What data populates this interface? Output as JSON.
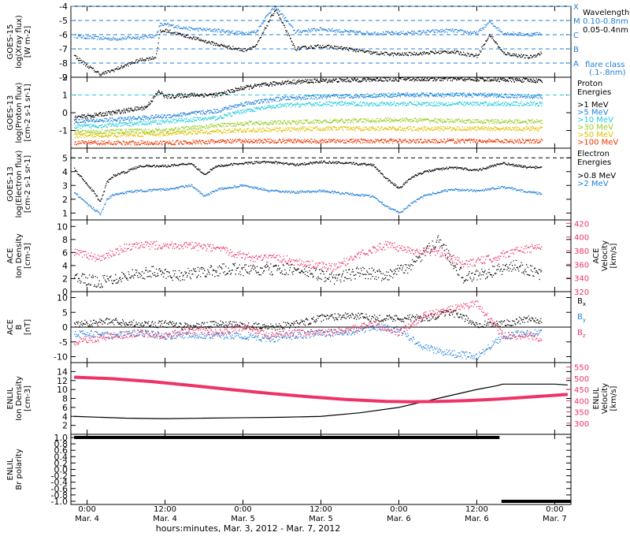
{
  "colors": {
    "black": "#000000",
    "blue": "#1e7fd8",
    "pink": "#ee3366",
    "cyan": "#22ccdd",
    "cyan2": "#33dddd",
    "lime": "#99cc22",
    "yellow": "#e0c000",
    "orange": "#ee8800",
    "red": "#ee3300",
    "dash_blue": "#1e7fd8"
  },
  "time_axis": {
    "title": "hours:minutes, Mar.  3, 2012 - Mar.  7, 2012",
    "ticks": [
      {
        "t": 0,
        "label1": "0:00",
        "label2": "Mar. 4"
      },
      {
        "t": 12,
        "label1": "12:00",
        "label2": "Mar. 4"
      },
      {
        "t": 24,
        "label1": "0:00",
        "label2": "Mar. 5"
      },
      {
        "t": 36,
        "label1": "12:00",
        "label2": "Mar. 5"
      },
      {
        "t": 48,
        "label1": "0:00",
        "label2": "Mar. 6"
      },
      {
        "t": 60,
        "label1": "12:00",
        "label2": "Mar. 6"
      },
      {
        "t": 72,
        "label1": "0:00",
        "label2": "Mar. 7"
      }
    ],
    "range": [
      -2.5,
      74.5
    ]
  },
  "chart_data": [
    {
      "id": "xray",
      "type": "line",
      "ylabel_lines": [
        "GOES-15",
        "log(Xray flux)",
        "[W m-2]"
      ],
      "ylim": [
        -9,
        -4
      ],
      "yticks": [
        -9,
        -8,
        -7,
        -6,
        -5,
        -4
      ],
      "ytick_labels": [
        "-9",
        "-8",
        "-7",
        "-6",
        "-5",
        "-4"
      ],
      "flare_lines": [
        {
          "y": -8,
          "label": "A"
        },
        {
          "y": -7,
          "label": "B"
        },
        {
          "y": -6,
          "label": "C"
        },
        {
          "y": -5,
          "label": "M"
        },
        {
          "y": -4,
          "label": "X"
        }
      ],
      "legend": [
        "Wavelength",
        "0.10-0.8nm",
        "0.05-0.4nm"
      ],
      "legend_note": [
        "flare class",
        "(.1-.8nm)"
      ],
      "series": [
        {
          "name": "0.10-0.8nm",
          "color_key": "blue",
          "x": [
            -2,
            0,
            4,
            8,
            10.5,
            11.2,
            12,
            16,
            20,
            24,
            26,
            28,
            29,
            30,
            32,
            36,
            40,
            44,
            48,
            52,
            56,
            60,
            62,
            64,
            68,
            70
          ],
          "y": [
            -6.1,
            -6.2,
            -6.3,
            -6.2,
            -6.1,
            -5.3,
            -5.3,
            -5.6,
            -5.7,
            -5.9,
            -5.8,
            -4.4,
            -4.1,
            -4.6,
            -5.8,
            -5.6,
            -5.8,
            -5.9,
            -5.9,
            -5.8,
            -5.7,
            -5.9,
            -5.1,
            -5.9,
            -6.0,
            -5.9
          ]
        },
        {
          "name": "0.05-0.4nm",
          "color_key": "black",
          "x": [
            -2,
            0,
            2,
            4,
            8,
            10.5,
            11.2,
            12,
            16,
            20,
            24,
            26,
            28,
            29,
            30,
            32,
            36,
            40,
            44,
            48,
            52,
            56,
            60,
            62,
            64,
            68,
            70
          ],
          "y": [
            -7.5,
            -8.2,
            -8.8,
            -8.5,
            -7.8,
            -7.6,
            -5.8,
            -5.7,
            -6.2,
            -6.7,
            -7.1,
            -6.8,
            -5.0,
            -4.2,
            -5.2,
            -7.0,
            -6.8,
            -7.0,
            -7.3,
            -7.4,
            -7.3,
            -7.2,
            -7.5,
            -6.0,
            -7.3,
            -7.6,
            -7.3
          ]
        }
      ]
    },
    {
      "id": "proton",
      "type": "scatter",
      "ylabel_lines": [
        "GOES-13",
        "log(Proton flux)",
        "[cm-2 s-1 sr-1]"
      ],
      "ylim": [
        -2,
        2
      ],
      "yticks": [
        -1,
        0,
        1,
        2
      ],
      "ytick_labels": [
        "-1",
        "0",
        "1",
        "2"
      ],
      "threshold": 1,
      "legend_title": [
        "Proton",
        "Energies"
      ],
      "series": [
        {
          "name": ">1 MeV",
          "color_key": "black",
          "x": [
            -2,
            4,
            9,
            11,
            12,
            16,
            20,
            24,
            30,
            36,
            48,
            60,
            70
          ],
          "y": [
            -0.3,
            0.0,
            0.3,
            1.2,
            0.9,
            1.0,
            1.0,
            1.4,
            1.7,
            1.8,
            1.9,
            1.9,
            1.8
          ]
        },
        {
          "name": ">5 MeV",
          "color_key": "blue",
          "x": [
            -2,
            4,
            12,
            20,
            24,
            30,
            36,
            48,
            60,
            70
          ],
          "y": [
            -0.5,
            -0.4,
            -0.2,
            0.1,
            0.5,
            0.8,
            0.9,
            1.0,
            1.0,
            0.9
          ]
        },
        {
          "name": ">10 MeV",
          "color_key": "cyan",
          "x": [
            -2,
            4,
            12,
            20,
            24,
            30,
            36,
            48,
            60,
            70
          ],
          "y": [
            -0.8,
            -0.7,
            -0.5,
            -0.3,
            0.1,
            0.4,
            0.5,
            0.5,
            0.5,
            0.5
          ]
        },
        {
          "name": ">30 MeV",
          "color_key": "lime",
          "x": [
            -2,
            12,
            24,
            36,
            48,
            60,
            70
          ],
          "y": [
            -1.1,
            -1.0,
            -0.6,
            -0.5,
            -0.4,
            -0.5,
            -0.5
          ]
        },
        {
          "name": ">50 MeV",
          "color_key": "yellow",
          "x": [
            -2,
            12,
            24,
            36,
            48,
            60,
            70
          ],
          "y": [
            -1.3,
            -1.2,
            -1.0,
            -0.9,
            -0.9,
            -0.9,
            -0.9
          ]
        },
        {
          "name": ">100 MeV",
          "color_key": "red",
          "x": [
            -2,
            12,
            24,
            36,
            48,
            60,
            70
          ],
          "y": [
            -1.7,
            -1.7,
            -1.6,
            -1.6,
            -1.6,
            -1.6,
            -1.6
          ]
        }
      ]
    },
    {
      "id": "electron",
      "type": "line",
      "ylabel_lines": [
        "GOES-13",
        "log(Electron flux)",
        "[cm-2 s-1 sr-1]"
      ],
      "ylim": [
        0.5,
        5.7
      ],
      "yticks": [
        1,
        2,
        3,
        4,
        5
      ],
      "ytick_labels": [
        "1",
        "2",
        "3",
        "4",
        "5"
      ],
      "threshold": 5,
      "legend_title": [
        "Electron",
        "Energies"
      ],
      "series": [
        {
          "name": ">0.8 MeV",
          "color_key": "black",
          "x": [
            -2,
            0,
            1,
            2,
            3,
            4,
            6,
            8,
            12,
            16,
            18,
            20,
            24,
            28,
            32,
            36,
            44,
            46,
            48,
            50,
            52,
            56,
            60,
            64,
            68,
            70
          ],
          "y": [
            4.2,
            3.0,
            2.5,
            1.8,
            3.2,
            3.7,
            4.0,
            4.4,
            4.4,
            4.6,
            3.8,
            4.4,
            4.6,
            4.7,
            4.5,
            4.7,
            4.5,
            3.5,
            2.8,
            3.6,
            4.0,
            4.3,
            4.1,
            4.6,
            4.3,
            4.3
          ]
        },
        {
          "name": ">2 MeV",
          "color_key": "blue",
          "x": [
            -2,
            0,
            1,
            2,
            3,
            4,
            6,
            8,
            12,
            16,
            18,
            20,
            24,
            28,
            32,
            36,
            44,
            46,
            48,
            50,
            52,
            56,
            60,
            64,
            68,
            70
          ],
          "y": [
            2.5,
            1.6,
            1.3,
            0.9,
            2.0,
            2.3,
            2.5,
            2.6,
            2.7,
            3.0,
            2.2,
            2.7,
            3.0,
            2.6,
            2.5,
            2.6,
            2.2,
            1.5,
            1.0,
            1.7,
            2.3,
            2.7,
            2.6,
            2.9,
            2.5,
            2.4
          ]
        }
      ]
    },
    {
      "id": "ace_plasma",
      "type": "scatter",
      "ylabel_lines": [
        "ACE",
        "Ion Density",
        "[cm-3]"
      ],
      "ylim": [
        0,
        11
      ],
      "yticks": [
        0,
        2,
        4,
        6,
        8,
        10
      ],
      "ytick_labels": [
        "0",
        "2",
        "4",
        "6",
        "8",
        "10"
      ],
      "right_ylabel_lines": [
        "ACE",
        "Velocity",
        "[km/s]"
      ],
      "right_ylim": [
        320,
        425
      ],
      "right_yticks": [
        320,
        340,
        360,
        380,
        400,
        420
      ],
      "right_ytick_labels": [
        "320",
        "340",
        "360",
        "380",
        "400",
        "420"
      ],
      "series": [
        {
          "name": "Ion Density",
          "color_key": "black",
          "x": [
            -2,
            2,
            6,
            10,
            14,
            18,
            22,
            26,
            30,
            34,
            38,
            42,
            46,
            50,
            54,
            58,
            62,
            66,
            70
          ],
          "y": [
            2.0,
            1.5,
            2.5,
            3.0,
            2.5,
            3.0,
            3.5,
            3.2,
            3.5,
            3.0,
            2.0,
            3.0,
            2.5,
            4.0,
            8.0,
            2.0,
            3.0,
            4.0,
            2.5
          ]
        },
        {
          "name": "Velocity",
          "color_key": "pink",
          "axis": "right",
          "x": [
            -2,
            2,
            6,
            10,
            14,
            18,
            22,
            26,
            30,
            34,
            38,
            42,
            46,
            50,
            54,
            58,
            62,
            66,
            70
          ],
          "y": [
            378,
            368,
            385,
            388,
            388,
            385,
            378,
            368,
            368,
            360,
            355,
            375,
            388,
            380,
            378,
            360,
            368,
            380,
            385
          ]
        }
      ]
    },
    {
      "id": "ace_mag",
      "type": "scatter",
      "ylabel_lines": [
        "ACE",
        "B",
        "[nT]"
      ],
      "ylim": [
        -12,
        12
      ],
      "yticks": [
        -10,
        -5,
        0,
        5,
        10
      ],
      "ytick_labels": [
        "-10",
        "-5",
        "0",
        "5",
        "10"
      ],
      "zero_line": true,
      "legend": [
        "Bx",
        "By",
        "Bz"
      ],
      "series": [
        {
          "name": "Bx",
          "color_key": "black",
          "x": [
            -2,
            4,
            8,
            12,
            16,
            20,
            24,
            28,
            32,
            36,
            40,
            44,
            48,
            52,
            56,
            60,
            64,
            68,
            70
          ],
          "y": [
            1.0,
            2.0,
            1.0,
            1.0,
            0.0,
            1.0,
            0.5,
            0.0,
            1.0,
            3.0,
            4.0,
            3.0,
            3.0,
            3.0,
            5.0,
            1.0,
            1.0,
            3.0,
            2.0
          ]
        },
        {
          "name": "By",
          "color_key": "blue",
          "x": [
            -2,
            4,
            8,
            12,
            16,
            20,
            24,
            28,
            32,
            36,
            40,
            44,
            48,
            52,
            56,
            60,
            64,
            68,
            70
          ],
          "y": [
            -2.0,
            -3.0,
            -2.0,
            -3.0,
            -2.5,
            -3.0,
            -3.0,
            -4.0,
            -3.0,
            -2.0,
            -2.0,
            0.0,
            -1.0,
            -7.0,
            -9.0,
            -10.0,
            -3.0,
            -2.0,
            -2.0
          ]
        },
        {
          "name": "Bz",
          "color_key": "pink",
          "x": [
            -2,
            4,
            8,
            12,
            16,
            20,
            24,
            28,
            32,
            36,
            40,
            44,
            48,
            52,
            56,
            60,
            64,
            68,
            70
          ],
          "y": [
            -5.0,
            -3.0,
            -2.0,
            -3.0,
            -1.0,
            -2.0,
            0.0,
            -3.0,
            -2.0,
            -2.0,
            -1.0,
            1.0,
            -2.0,
            4.0,
            6.0,
            8.0,
            -3.0,
            -3.0,
            -4.0
          ]
        }
      ]
    },
    {
      "id": "enlil_plasma",
      "type": "line",
      "ylabel_lines": [
        "ENLIL",
        "Ion Density",
        "[cm-3]"
      ],
      "ylim": [
        0,
        16
      ],
      "yticks": [
        2,
        4,
        6,
        8,
        10,
        12,
        14
      ],
      "ytick_labels": [
        "2",
        "4",
        "6",
        "8",
        "10",
        "12",
        "14"
      ],
      "right_ylabel_lines": [
        "ENLIL",
        "Velocity",
        "[km/s]"
      ],
      "right_ylim": [
        250,
        570
      ],
      "right_yticks": [
        300,
        350,
        400,
        450,
        500,
        550
      ],
      "right_ytick_labels": [
        "300",
        "350",
        "400",
        "450",
        "500",
        "550"
      ],
      "series": [
        {
          "name": "Ion Density",
          "color_key": "black",
          "x": [
            -2,
            6,
            12,
            18,
            24,
            30,
            36,
            42,
            48,
            54,
            60,
            63,
            64,
            68,
            72,
            74
          ],
          "y": [
            4.0,
            3.6,
            3.5,
            3.6,
            3.7,
            3.8,
            4.0,
            4.8,
            6.0,
            8.0,
            10.0,
            10.8,
            11.2,
            11.2,
            11.2,
            11.0
          ]
        },
        {
          "name": "Velocity",
          "color_key": "pink",
          "axis": "right",
          "x": [
            -2,
            4,
            10,
            16,
            22,
            28,
            34,
            40,
            46,
            50,
            54,
            58,
            62,
            66,
            70,
            74
          ],
          "y": [
            505,
            498,
            485,
            468,
            450,
            433,
            418,
            405,
            397,
            395,
            397,
            400,
            405,
            412,
            420,
            428
          ]
        }
      ]
    },
    {
      "id": "enlil_polarity",
      "type": "line",
      "ylabel_lines": [
        "ENLIL",
        "Br polarity"
      ],
      "ylim": [
        -1.1,
        1.1
      ],
      "yticks": [
        -1.0,
        -0.8,
        -0.6,
        -0.4,
        -0.2,
        0.0,
        0.2,
        0.4,
        0.6,
        0.8,
        1.0
      ],
      "ytick_labels": [
        "-1.0",
        "-0.8",
        "-0.6",
        "-0.4",
        "-0.2",
        "0.0",
        "0.2",
        "0.4",
        "0.6",
        "0.8",
        "1.0"
      ],
      "series": [
        {
          "name": "positive",
          "color_key": "black",
          "x": [
            -2,
            63.5
          ],
          "y": [
            1.0,
            1.0
          ]
        },
        {
          "name": "negative",
          "color_key": "black",
          "x": [
            63.8,
            74.5
          ],
          "y": [
            -1.0,
            -1.0
          ]
        }
      ]
    }
  ],
  "right_labels": {
    "xray_legend_title": "Wavelength",
    "proton_energy_labels": [
      ">1 MeV",
      ">5 MeV",
      ">10 MeV",
      ">30 MeV",
      ">50 MeV",
      ">100 MeV"
    ],
    "electron_energy_labels": [
      ">0.8 MeV",
      ">2 MeV"
    ],
    "mag_labels": [
      "Bx",
      "By",
      "Bz"
    ]
  }
}
